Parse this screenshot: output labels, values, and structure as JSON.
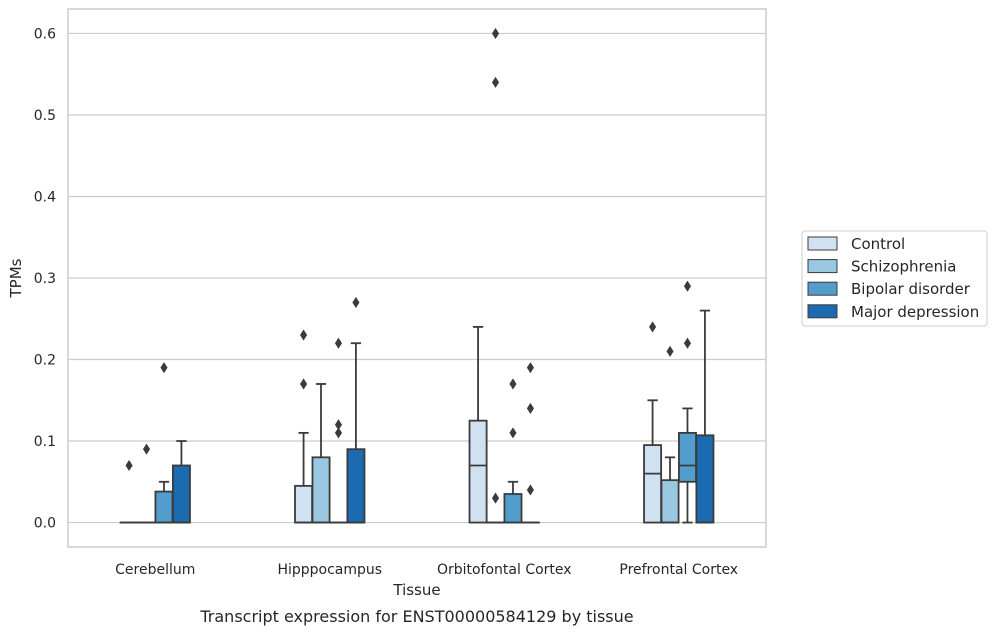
{
  "chart_data": {
    "type": "box",
    "xlabel": "Tissue",
    "ylabel": "TPMs",
    "caption": "Transcript expression for ENST00000584129 by tissue",
    "ylim": [
      -0.03,
      0.63
    ],
    "yticks": [
      0.0,
      0.1,
      0.2,
      0.3,
      0.4,
      0.5,
      0.6
    ],
    "ytick_labels": [
      "0.0",
      "0.1",
      "0.2",
      "0.3",
      "0.4",
      "0.5",
      "0.6"
    ],
    "grid": "horizontal",
    "legend_position": "right",
    "categories": [
      "Cerebellum",
      "Hipppocampus",
      "Orbitofontal Cortex",
      "Prefrontal Cortex"
    ],
    "series": [
      {
        "name": "Control",
        "color": "#d0e1f2",
        "boxes": [
          {
            "q1": 0.0,
            "median": 0.0,
            "q3": 0.0,
            "whisker_low": 0.0,
            "whisker_high": 0.0,
            "outliers": [
              0.07
            ]
          },
          {
            "q1": 0.0,
            "median": 0.0,
            "q3": 0.045,
            "whisker_low": 0.0,
            "whisker_high": 0.11,
            "outliers": [
              0.17,
              0.23
            ]
          },
          {
            "q1": 0.0,
            "median": 0.07,
            "q3": 0.125,
            "whisker_low": 0.0,
            "whisker_high": 0.24,
            "outliers": []
          },
          {
            "q1": 0.0,
            "median": 0.06,
            "q3": 0.095,
            "whisker_low": 0.0,
            "whisker_high": 0.15,
            "outliers": [
              0.24
            ]
          }
        ]
      },
      {
        "name": "Schizophrenia",
        "color": "#9ac8e0",
        "boxes": [
          {
            "q1": 0.0,
            "median": 0.0,
            "q3": 0.0,
            "whisker_low": 0.0,
            "whisker_high": 0.0,
            "outliers": [
              0.09
            ]
          },
          {
            "q1": 0.0,
            "median": 0.0,
            "q3": 0.08,
            "whisker_low": 0.0,
            "whisker_high": 0.17,
            "outliers": []
          },
          {
            "q1": 0.0,
            "median": 0.0,
            "q3": 0.0,
            "whisker_low": 0.0,
            "whisker_high": 0.0,
            "outliers": [
              0.03,
              0.54,
              0.6
            ]
          },
          {
            "q1": 0.0,
            "median": 0.0,
            "q3": 0.052,
            "whisker_low": 0.0,
            "whisker_high": 0.08,
            "outliers": [
              0.21
            ]
          }
        ]
      },
      {
        "name": "Bipolar disorder",
        "color": "#529dcc",
        "boxes": [
          {
            "q1": 0.0,
            "median": 0.0,
            "q3": 0.038,
            "whisker_low": 0.0,
            "whisker_high": 0.05,
            "outliers": [
              0.19
            ]
          },
          {
            "q1": 0.0,
            "median": 0.0,
            "q3": 0.0,
            "whisker_low": 0.0,
            "whisker_high": 0.0,
            "outliers": [
              0.11,
              0.12,
              0.22
            ]
          },
          {
            "q1": 0.0,
            "median": 0.0,
            "q3": 0.035,
            "whisker_low": 0.0,
            "whisker_high": 0.05,
            "outliers": [
              0.11,
              0.17
            ]
          },
          {
            "q1": 0.05,
            "median": 0.07,
            "q3": 0.11,
            "whisker_low": 0.0,
            "whisker_high": 0.14,
            "outliers": [
              0.22,
              0.29
            ]
          }
        ]
      },
      {
        "name": "Major depression",
        "color": "#1c6aaf",
        "boxes": [
          {
            "q1": 0.0,
            "median": 0.0,
            "q3": 0.07,
            "whisker_low": 0.0,
            "whisker_high": 0.1,
            "outliers": []
          },
          {
            "q1": 0.0,
            "median": 0.0,
            "q3": 0.09,
            "whisker_low": 0.0,
            "whisker_high": 0.22,
            "outliers": [
              0.27
            ]
          },
          {
            "q1": 0.0,
            "median": 0.0,
            "q3": 0.0,
            "whisker_low": 0.0,
            "whisker_high": 0.0,
            "outliers": [
              0.04,
              0.14,
              0.19
            ]
          },
          {
            "q1": 0.0,
            "median": 0.0,
            "q3": 0.107,
            "whisker_low": 0.0,
            "whisker_high": 0.26,
            "outliers": []
          }
        ]
      }
    ]
  }
}
